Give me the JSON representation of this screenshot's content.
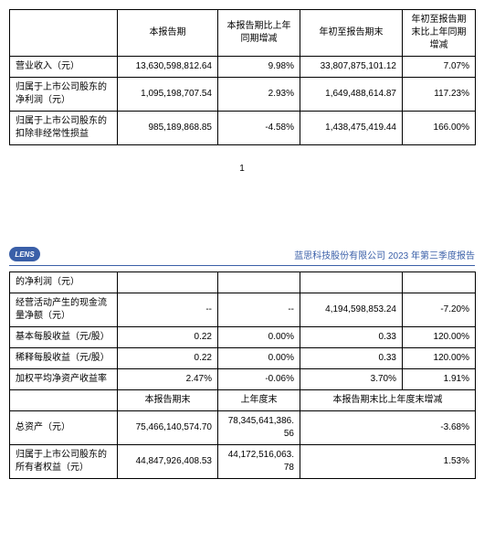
{
  "table1": {
    "headers": [
      "",
      "本报告期",
      "本报告期比上年同期增减",
      "年初至报告期末",
      "年初至报告期末比上年同期增减"
    ],
    "rows": [
      {
        "label": "营业收入（元）",
        "c1": "13,630,598,812.64",
        "c2": "9.98%",
        "c3": "33,807,875,101.12",
        "c4": "7.07%"
      },
      {
        "label": "归属于上市公司股东的净利润（元）",
        "c1": "1,095,198,707.54",
        "c2": "2.93%",
        "c3": "1,649,488,614.87",
        "c4": "117.23%"
      },
      {
        "label": "归属于上市公司股东的扣除非经常性损益",
        "c1": "985,189,868.85",
        "c2": "-4.58%",
        "c3": "1,438,475,419.44",
        "c4": "166.00%"
      }
    ]
  },
  "page_number": "1",
  "logo_text": "LENS",
  "report_title": "蓝思科技股份有限公司 2023 年第三季度报告",
  "table2": {
    "rows": [
      {
        "label": "的净利润（元）",
        "c1": "",
        "c2": "",
        "c3": "",
        "c4": ""
      },
      {
        "label": "经营活动产生的现金流量净额（元）",
        "c1": "--",
        "c2": "--",
        "c3": "4,194,598,853.24",
        "c4": "-7.20%"
      },
      {
        "label": "基本每股收益（元/股）",
        "c1": "0.22",
        "c2": "0.00%",
        "c3": "0.33",
        "c4": "120.00%"
      },
      {
        "label": "稀释每股收益（元/股）",
        "c1": "0.22",
        "c2": "0.00%",
        "c3": "0.33",
        "c4": "120.00%"
      },
      {
        "label": "加权平均净资产收益率",
        "c1": "2.47%",
        "c2": "-0.06%",
        "c3": "3.70%",
        "c4": "1.91%"
      }
    ]
  },
  "table3": {
    "headers": [
      "",
      "本报告期末",
      "上年度末",
      "本报告期末比上年度末增减"
    ],
    "rows": [
      {
        "label": "总资产（元）",
        "c1": "75,466,140,574.70",
        "c2": "78,345,641,386.56",
        "c3": "-3.68%"
      },
      {
        "label": "归属于上市公司股东的所有者权益（元）",
        "c1": "44,847,926,408.53",
        "c2": "44,172,516,063.78",
        "c3": "1.53%"
      }
    ]
  }
}
